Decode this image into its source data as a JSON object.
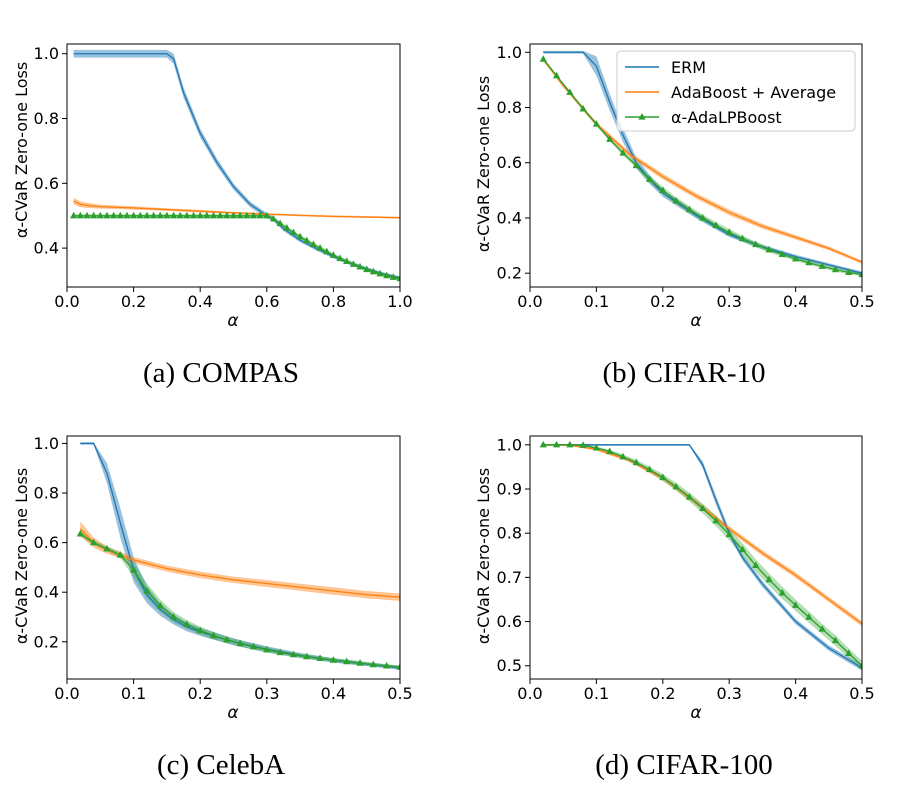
{
  "chart_data": [
    {
      "type": "line",
      "panel": "a",
      "caption": "(a) COMPAS",
      "xlabel": "α",
      "ylabel": "α-CVaR Zero-one Loss",
      "xlim": [
        0.0,
        1.0
      ],
      "ylim": [
        0.28,
        1.03
      ],
      "xticks": [
        0.0,
        0.2,
        0.4,
        0.6,
        0.8,
        1.0
      ],
      "xtick_labels": [
        "0.0",
        "0.2",
        "0.4",
        "0.6",
        "0.8",
        "1.0"
      ],
      "yticks": [
        0.4,
        0.6,
        0.8,
        1.0
      ],
      "ytick_labels": [
        "0.4",
        "0.6",
        "0.8",
        "1.0"
      ],
      "legend": {
        "show": false
      },
      "series": [
        {
          "name": "ERM",
          "color": "#1f77b4",
          "x": [
            0.02,
            0.1,
            0.2,
            0.3,
            0.32,
            0.35,
            0.4,
            0.45,
            0.5,
            0.55,
            0.6,
            0.62,
            0.65,
            0.7,
            0.75,
            0.8,
            0.85,
            0.9,
            0.95,
            1.0
          ],
          "y": [
            1.0,
            1.0,
            1.0,
            1.0,
            0.985,
            0.88,
            0.755,
            0.665,
            0.59,
            0.535,
            0.5,
            0.49,
            0.46,
            0.425,
            0.398,
            0.374,
            0.354,
            0.336,
            0.32,
            0.308
          ],
          "band": [
            0.012,
            0.012,
            0.012,
            0.012,
            0.016,
            0.016,
            0.014,
            0.012,
            0.01,
            0.009,
            0.008,
            0.008,
            0.007,
            0.007,
            0.006,
            0.006,
            0.006,
            0.005,
            0.005,
            0.005
          ]
        },
        {
          "name": "AdaBoost + Average",
          "color": "#ff7f0e",
          "x": [
            0.02,
            0.04,
            0.06,
            0.1,
            0.2,
            0.3,
            0.4,
            0.5,
            0.6,
            0.7,
            0.8,
            0.9,
            1.0
          ],
          "y": [
            0.545,
            0.535,
            0.532,
            0.528,
            0.524,
            0.519,
            0.514,
            0.509,
            0.505,
            0.501,
            0.498,
            0.496,
            0.494
          ],
          "band": [
            0.01,
            0.009,
            0.008,
            0.006,
            0.005,
            0.004,
            0.004,
            0.003,
            0.003,
            0.003,
            0.003,
            0.003,
            0.003
          ]
        },
        {
          "name": "α-AdaLPBoost",
          "color": "#2ca02c",
          "marker": "triangle",
          "x": [
            0.02,
            0.04,
            0.06,
            0.08,
            0.1,
            0.12,
            0.14,
            0.16,
            0.18,
            0.2,
            0.22,
            0.24,
            0.26,
            0.28,
            0.3,
            0.32,
            0.34,
            0.36,
            0.38,
            0.4,
            0.42,
            0.44,
            0.46,
            0.48,
            0.5,
            0.52,
            0.54,
            0.56,
            0.58,
            0.6,
            0.62,
            0.64,
            0.66,
            0.68,
            0.7,
            0.72,
            0.74,
            0.76,
            0.78,
            0.8,
            0.82,
            0.84,
            0.86,
            0.88,
            0.9,
            0.92,
            0.94,
            0.96,
            0.98,
            1.0
          ],
          "y": [
            0.5,
            0.5,
            0.5,
            0.5,
            0.5,
            0.5,
            0.5,
            0.5,
            0.5,
            0.5,
            0.5,
            0.5,
            0.5,
            0.5,
            0.5,
            0.5,
            0.5,
            0.5,
            0.5,
            0.5,
            0.5,
            0.5,
            0.5,
            0.5,
            0.5,
            0.5,
            0.5,
            0.5,
            0.5,
            0.5,
            0.49,
            0.476,
            0.462,
            0.448,
            0.435,
            0.423,
            0.411,
            0.4,
            0.389,
            0.378,
            0.368,
            0.359,
            0.35,
            0.342,
            0.334,
            0.327,
            0.321,
            0.315,
            0.31,
            0.306
          ],
          "band": [
            0.004,
            0.004,
            0.004,
            0.004,
            0.004,
            0.004,
            0.004,
            0.004,
            0.004,
            0.004,
            0.004,
            0.004,
            0.004,
            0.004,
            0.004,
            0.004,
            0.004,
            0.004,
            0.004,
            0.004,
            0.004,
            0.004,
            0.004,
            0.004,
            0.004,
            0.004,
            0.004,
            0.004,
            0.004,
            0.004,
            0.006,
            0.006,
            0.006,
            0.006,
            0.006,
            0.006,
            0.006,
            0.006,
            0.006,
            0.006,
            0.006,
            0.006,
            0.006,
            0.006,
            0.006,
            0.006,
            0.006,
            0.006,
            0.006,
            0.006
          ]
        }
      ]
    },
    {
      "type": "line",
      "panel": "b",
      "caption": "(b) CIFAR-10",
      "xlabel": "α",
      "ylabel": "α-CVaR Zero-one Loss",
      "xlim": [
        0.0,
        0.5
      ],
      "ylim": [
        0.15,
        1.03
      ],
      "xticks": [
        0.0,
        0.1,
        0.2,
        0.3,
        0.4,
        0.5
      ],
      "xtick_labels": [
        "0.0",
        "0.1",
        "0.2",
        "0.3",
        "0.4",
        "0.5"
      ],
      "yticks": [
        0.2,
        0.4,
        0.6,
        0.8,
        1.0
      ],
      "ytick_labels": [
        "0.2",
        "0.4",
        "0.6",
        "0.8",
        "1.0"
      ],
      "legend": {
        "show": true,
        "position": "top-right",
        "entries": [
          "ERM",
          "AdaBoost + Average",
          "α-AdaLPBoost"
        ]
      },
      "series": [
        {
          "name": "ERM",
          "color": "#1f77b4",
          "x": [
            0.02,
            0.04,
            0.06,
            0.08,
            0.1,
            0.12,
            0.14,
            0.16,
            0.18,
            0.2,
            0.25,
            0.3,
            0.35,
            0.4,
            0.45,
            0.5
          ],
          "y": [
            1.0,
            1.0,
            1.0,
            1.0,
            0.95,
            0.82,
            0.7,
            0.6,
            0.54,
            0.49,
            0.41,
            0.34,
            0.295,
            0.26,
            0.23,
            0.2
          ],
          "band": [
            0.005,
            0.005,
            0.005,
            0.005,
            0.035,
            0.03,
            0.025,
            0.02,
            0.016,
            0.013,
            0.011,
            0.009,
            0.008,
            0.007,
            0.006,
            0.006
          ]
        },
        {
          "name": "AdaBoost + Average",
          "color": "#ff7f0e",
          "x": [
            0.02,
            0.05,
            0.1,
            0.15,
            0.2,
            0.25,
            0.3,
            0.35,
            0.4,
            0.45,
            0.5
          ],
          "y": [
            0.975,
            0.88,
            0.74,
            0.63,
            0.55,
            0.48,
            0.42,
            0.37,
            0.33,
            0.29,
            0.24
          ],
          "band": [
            0.008,
            0.008,
            0.008,
            0.009,
            0.01,
            0.01,
            0.01,
            0.009,
            0.008,
            0.007,
            0.006
          ]
        },
        {
          "name": "α-AdaLPBoost",
          "color": "#2ca02c",
          "marker": "triangle",
          "x": [
            0.02,
            0.04,
            0.06,
            0.08,
            0.1,
            0.12,
            0.14,
            0.16,
            0.18,
            0.2,
            0.22,
            0.24,
            0.26,
            0.28,
            0.3,
            0.32,
            0.34,
            0.36,
            0.38,
            0.4,
            0.42,
            0.44,
            0.46,
            0.48,
            0.5
          ],
          "y": [
            0.975,
            0.915,
            0.855,
            0.795,
            0.74,
            0.685,
            0.635,
            0.59,
            0.54,
            0.5,
            0.462,
            0.43,
            0.4,
            0.373,
            0.348,
            0.325,
            0.304,
            0.285,
            0.268,
            0.252,
            0.238,
            0.225,
            0.213,
            0.203,
            0.195
          ],
          "band": [
            0.005,
            0.005,
            0.005,
            0.006,
            0.006,
            0.007,
            0.008,
            0.01,
            0.012,
            0.013,
            0.013,
            0.013,
            0.013,
            0.012,
            0.012,
            0.011,
            0.01,
            0.01,
            0.009,
            0.008,
            0.008,
            0.007,
            0.007,
            0.006,
            0.006
          ]
        }
      ]
    },
    {
      "type": "line",
      "panel": "c",
      "caption": "(c) CelebA",
      "xlabel": "α",
      "ylabel": "α-CVaR Zero-one Loss",
      "xlim": [
        0.0,
        0.5
      ],
      "ylim": [
        0.05,
        1.03
      ],
      "xticks": [
        0.0,
        0.1,
        0.2,
        0.3,
        0.4,
        0.5
      ],
      "xtick_labels": [
        "0.0",
        "0.1",
        "0.2",
        "0.3",
        "0.4",
        "0.5"
      ],
      "yticks": [
        0.2,
        0.4,
        0.6,
        0.8,
        1.0
      ],
      "ytick_labels": [
        "0.2",
        "0.4",
        "0.6",
        "0.8",
        "1.0"
      ],
      "legend": {
        "show": false
      },
      "series": [
        {
          "name": "ERM",
          "color": "#1f77b4",
          "x": [
            0.02,
            0.04,
            0.06,
            0.08,
            0.1,
            0.12,
            0.14,
            0.16,
            0.18,
            0.2,
            0.25,
            0.3,
            0.35,
            0.4,
            0.45,
            0.5
          ],
          "y": [
            1.0,
            1.0,
            0.88,
            0.68,
            0.49,
            0.39,
            0.33,
            0.29,
            0.26,
            0.24,
            0.2,
            0.17,
            0.145,
            0.125,
            0.11,
            0.095
          ],
          "band": [
            0.005,
            0.005,
            0.04,
            0.06,
            0.05,
            0.035,
            0.025,
            0.02,
            0.018,
            0.016,
            0.014,
            0.012,
            0.01,
            0.009,
            0.008,
            0.008
          ]
        },
        {
          "name": "AdaBoost + Average",
          "color": "#ff7f0e",
          "x": [
            0.02,
            0.04,
            0.06,
            0.08,
            0.1,
            0.15,
            0.2,
            0.25,
            0.3,
            0.35,
            0.4,
            0.45,
            0.5
          ],
          "y": [
            0.655,
            0.6,
            0.57,
            0.55,
            0.53,
            0.495,
            0.47,
            0.45,
            0.435,
            0.42,
            0.405,
            0.39,
            0.38
          ],
          "band": [
            0.03,
            0.02,
            0.015,
            0.013,
            0.012,
            0.012,
            0.013,
            0.013,
            0.014,
            0.014,
            0.015,
            0.015,
            0.015
          ]
        },
        {
          "name": "α-AdaLPBoost",
          "color": "#2ca02c",
          "marker": "triangle",
          "x": [
            0.02,
            0.04,
            0.06,
            0.08,
            0.1,
            0.12,
            0.14,
            0.16,
            0.18,
            0.2,
            0.22,
            0.24,
            0.26,
            0.28,
            0.3,
            0.32,
            0.34,
            0.36,
            0.38,
            0.4,
            0.42,
            0.44,
            0.46,
            0.48,
            0.5
          ],
          "y": [
            0.635,
            0.6,
            0.575,
            0.55,
            0.49,
            0.405,
            0.345,
            0.3,
            0.27,
            0.245,
            0.225,
            0.208,
            0.193,
            0.18,
            0.168,
            0.157,
            0.148,
            0.14,
            0.133,
            0.126,
            0.12,
            0.114,
            0.108,
            0.103,
            0.098
          ],
          "band": [
            0.01,
            0.01,
            0.01,
            0.012,
            0.03,
            0.03,
            0.025,
            0.02,
            0.018,
            0.016,
            0.015,
            0.014,
            0.013,
            0.012,
            0.011,
            0.01,
            0.01,
            0.009,
            0.009,
            0.008,
            0.008,
            0.008,
            0.007,
            0.007,
            0.007
          ]
        }
      ]
    },
    {
      "type": "line",
      "panel": "d",
      "caption": "(d) CIFAR-100",
      "xlabel": "α",
      "ylabel": "α-CVaR Zero-one Loss",
      "xlim": [
        0.0,
        0.5
      ],
      "ylim": [
        0.47,
        1.02
      ],
      "xticks": [
        0.0,
        0.1,
        0.2,
        0.3,
        0.4,
        0.5
      ],
      "xtick_labels": [
        "0.0",
        "0.1",
        "0.2",
        "0.3",
        "0.4",
        "0.5"
      ],
      "yticks": [
        0.5,
        0.6,
        0.7,
        0.8,
        0.9,
        1.0
      ],
      "ytick_labels": [
        "0.5",
        "0.6",
        "0.7",
        "0.8",
        "0.9",
        "1.0"
      ],
      "legend": {
        "show": false
      },
      "series": [
        {
          "name": "ERM",
          "color": "#1f77b4",
          "x": [
            0.02,
            0.1,
            0.2,
            0.24,
            0.26,
            0.28,
            0.3,
            0.32,
            0.35,
            0.4,
            0.45,
            0.5
          ],
          "y": [
            1.0,
            1.0,
            1.0,
            1.0,
            0.955,
            0.875,
            0.8,
            0.745,
            0.685,
            0.6,
            0.54,
            0.495
          ],
          "band": [
            0.002,
            0.002,
            0.002,
            0.002,
            0.008,
            0.01,
            0.008,
            0.007,
            0.007,
            0.006,
            0.006,
            0.006
          ]
        },
        {
          "name": "AdaBoost + Average",
          "color": "#ff7f0e",
          "x": [
            0.02,
            0.06,
            0.1,
            0.15,
            0.2,
            0.25,
            0.3,
            0.35,
            0.4,
            0.45,
            0.5
          ],
          "y": [
            1.0,
            0.999,
            0.99,
            0.965,
            0.925,
            0.87,
            0.81,
            0.755,
            0.705,
            0.65,
            0.595
          ],
          "band": [
            0.002,
            0.002,
            0.003,
            0.004,
            0.005,
            0.006,
            0.006,
            0.006,
            0.006,
            0.006,
            0.006
          ]
        },
        {
          "name": "α-AdaLPBoost",
          "color": "#2ca02c",
          "marker": "triangle",
          "x": [
            0.02,
            0.04,
            0.06,
            0.08,
            0.1,
            0.12,
            0.14,
            0.16,
            0.18,
            0.2,
            0.22,
            0.24,
            0.26,
            0.28,
            0.3,
            0.32,
            0.34,
            0.36,
            0.38,
            0.4,
            0.42,
            0.44,
            0.46,
            0.48,
            0.5
          ],
          "y": [
            1.0,
            1.0,
            1.0,
            0.999,
            0.993,
            0.985,
            0.973,
            0.96,
            0.944,
            0.926,
            0.905,
            0.882,
            0.856,
            0.828,
            0.797,
            0.763,
            0.727,
            0.695,
            0.665,
            0.637,
            0.61,
            0.583,
            0.557,
            0.528,
            0.5
          ],
          "band": [
            0.002,
            0.002,
            0.002,
            0.002,
            0.003,
            0.004,
            0.005,
            0.006,
            0.007,
            0.008,
            0.009,
            0.01,
            0.011,
            0.012,
            0.013,
            0.014,
            0.014,
            0.014,
            0.014,
            0.013,
            0.013,
            0.012,
            0.012,
            0.011,
            0.011
          ]
        }
      ]
    }
  ]
}
